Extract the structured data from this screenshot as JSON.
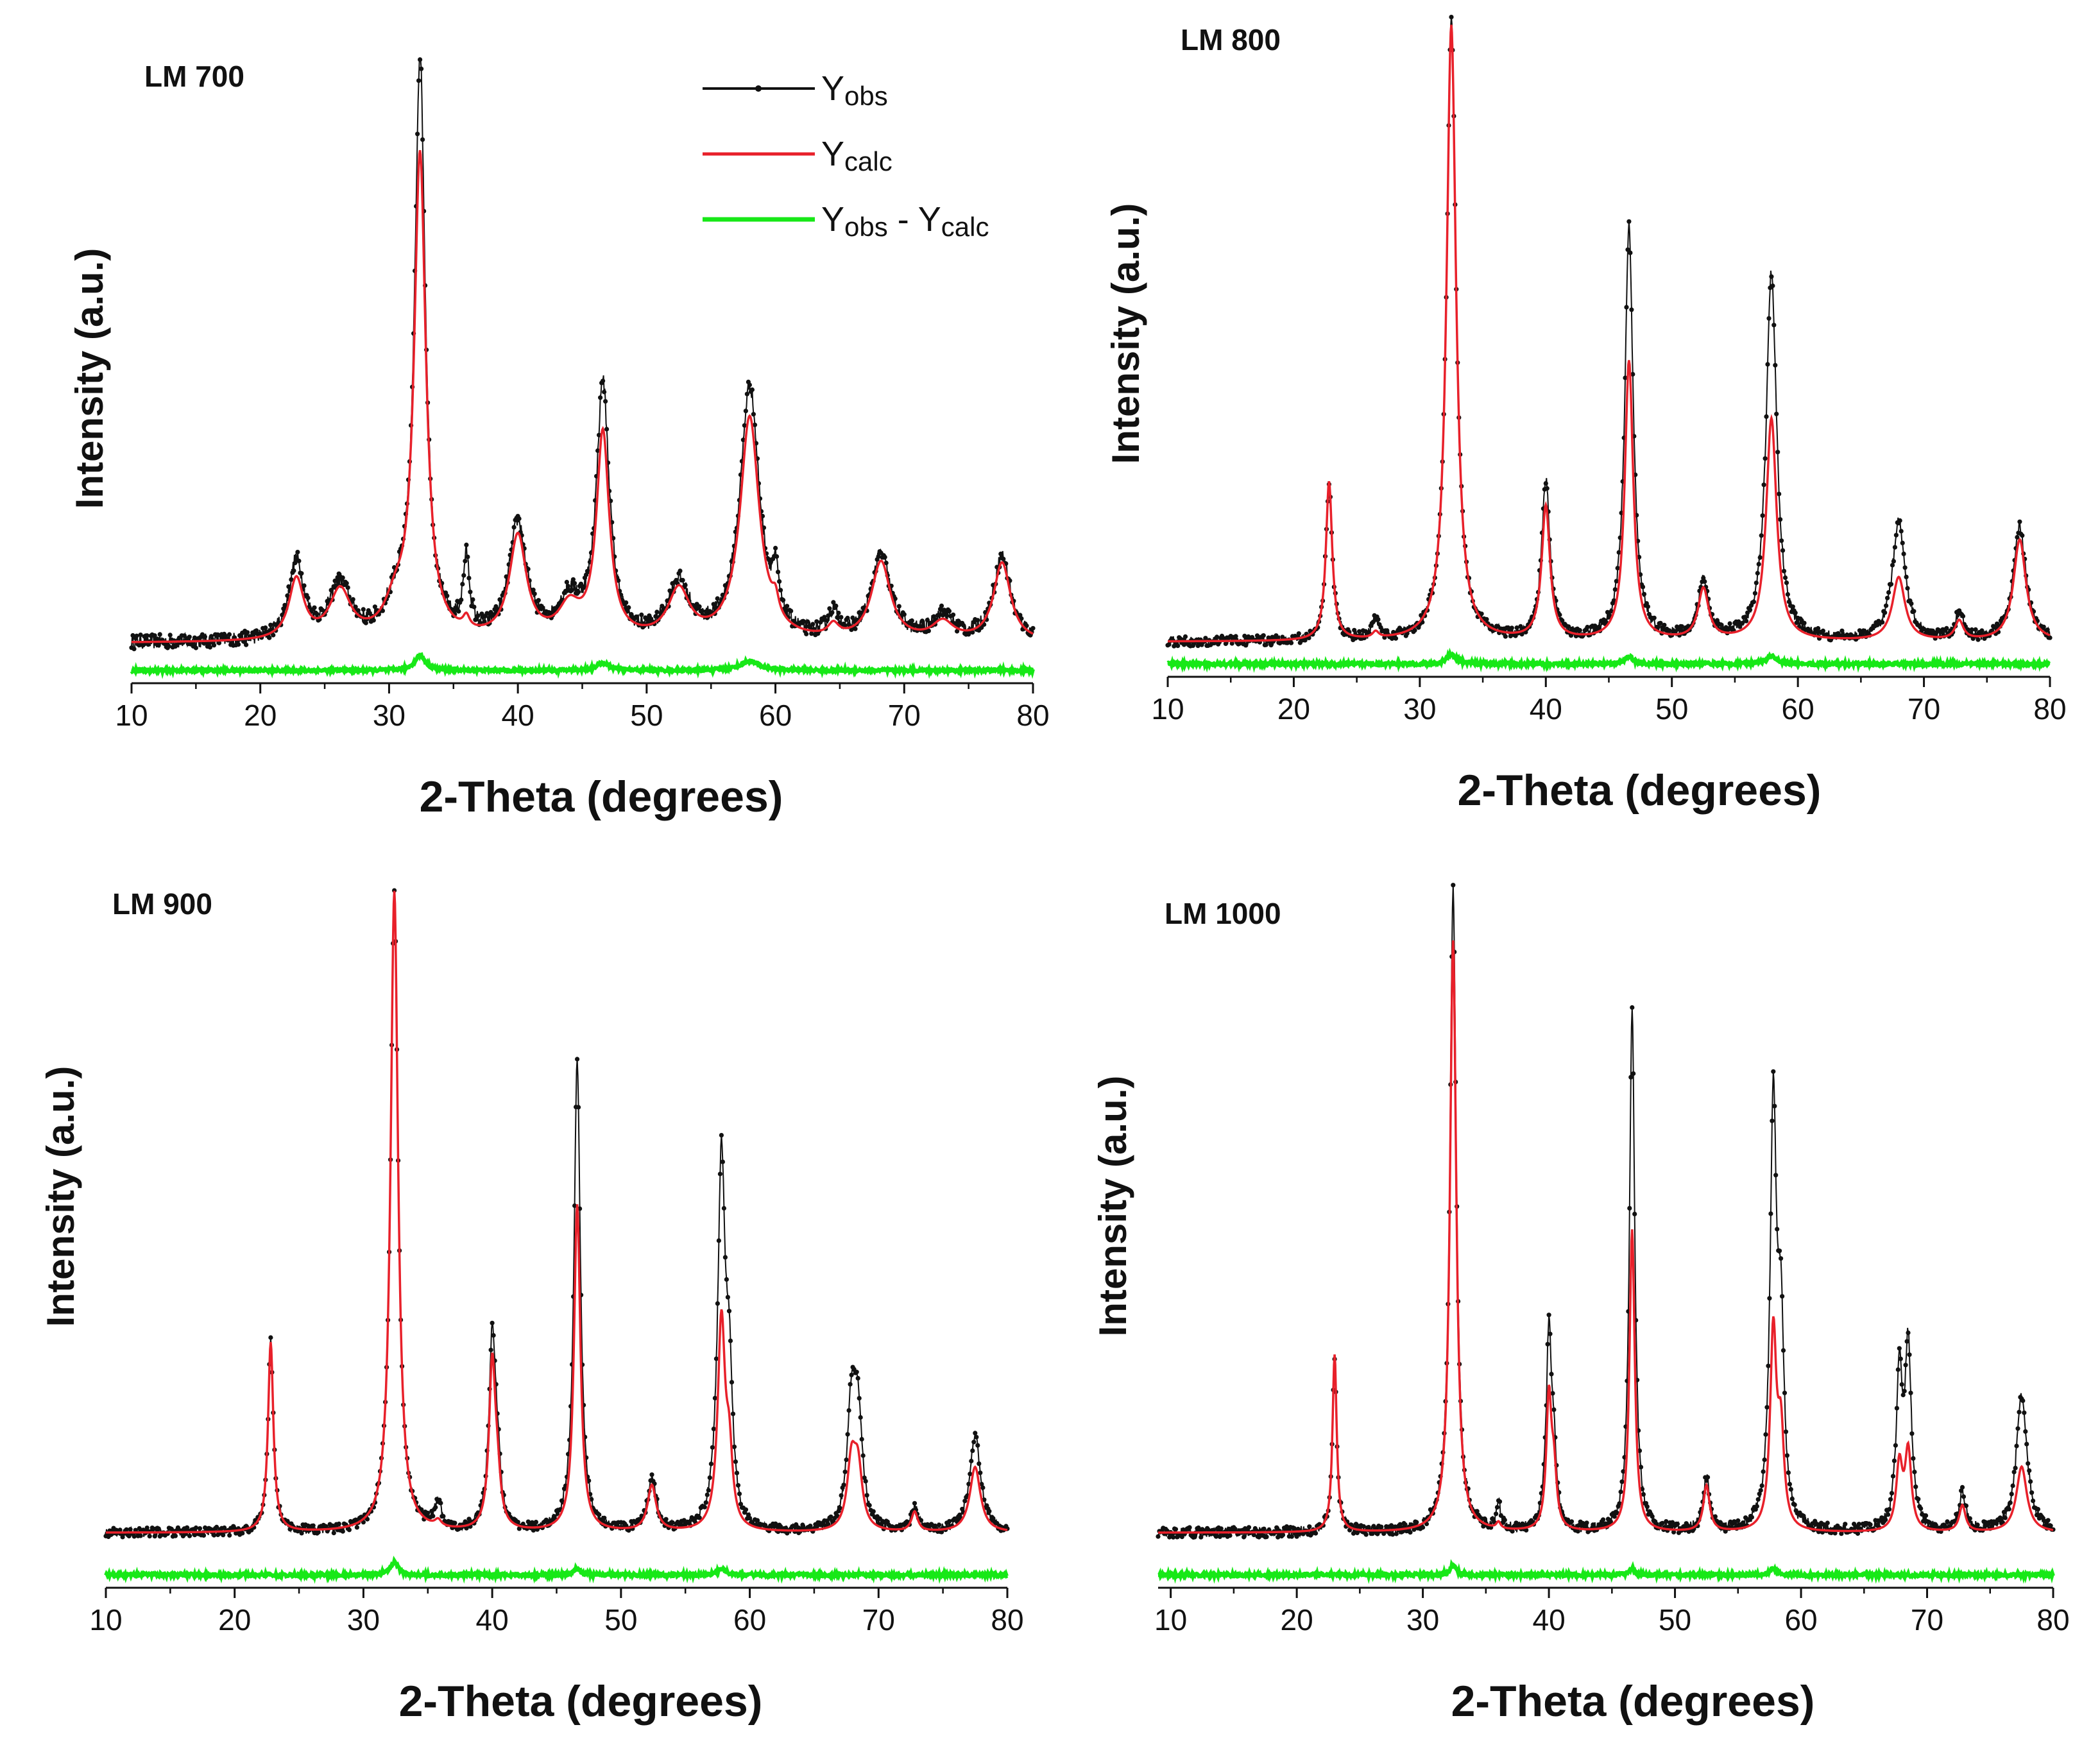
{
  "colors": {
    "obs": "#111111",
    "calc": "#e8202a",
    "diff": "#17e817"
  },
  "legend": {
    "obs": {
      "main": "Y",
      "sub": "obs"
    },
    "calc": {
      "main": "Y",
      "sub": "calc"
    },
    "diff": {
      "main1": "Y",
      "sub1": "obs",
      "mid": " - ",
      "main2": "Y",
      "sub2": "calc"
    }
  },
  "chart_data": [
    {
      "type": "line",
      "title": "LM 700",
      "xlabel": "2-Theta (degrees)",
      "ylabel": "Intensity (a.u.)",
      "xlim": [
        10,
        80
      ],
      "xticks": [
        10,
        20,
        30,
        40,
        50,
        60,
        70,
        80
      ],
      "ylim": [
        0,
        100
      ],
      "baseline": 4,
      "noise": 1.2,
      "series": [
        {
          "name": "Yobs",
          "peaks": [
            [
              22.8,
              13,
              0.7
            ],
            [
              26.2,
              9,
              1.0
            ],
            [
              30.5,
              5,
              1.0
            ],
            [
              32.4,
              96,
              0.5
            ],
            [
              36.0,
              12,
              0.3
            ],
            [
              40.0,
              19,
              0.8
            ],
            [
              44.0,
              6,
              1.0
            ],
            [
              46.6,
              42,
              0.6
            ],
            [
              52.5,
              9,
              1.0
            ],
            [
              58.0,
              42,
              0.9
            ],
            [
              60.0,
              7,
              0.3
            ],
            [
              64.5,
              4,
              0.5
            ],
            [
              68.2,
              14,
              0.9
            ],
            [
              73.0,
              4,
              1.0
            ],
            [
              77.6,
              14,
              0.8
            ]
          ]
        },
        {
          "name": "Ycalc",
          "peaks": [
            [
              22.8,
              10,
              0.7
            ],
            [
              26.2,
              8,
              1.0
            ],
            [
              30.5,
              5,
              1.0
            ],
            [
              32.4,
              80,
              0.55
            ],
            [
              36.0,
              2,
              0.3
            ],
            [
              40.0,
              17,
              0.8
            ],
            [
              44.0,
              5,
              1.0
            ],
            [
              46.6,
              34,
              0.6
            ],
            [
              52.5,
              8,
              1.0
            ],
            [
              58.0,
              37,
              0.9
            ],
            [
              60.0,
              3,
              0.3
            ],
            [
              64.5,
              2,
              0.5
            ],
            [
              68.2,
              13,
              0.9
            ],
            [
              73.0,
              3,
              1.0
            ],
            [
              77.6,
              13,
              0.8
            ]
          ]
        },
        {
          "name": "Yobs - Ycalc",
          "peaks": [
            [
              32.4,
              2.5,
              0.5
            ],
            [
              46.6,
              1.2,
              0.6
            ],
            [
              58.0,
              1.5,
              0.9
            ]
          ]
        }
      ]
    },
    {
      "type": "line",
      "title": "LM 800",
      "xlabel": "2-Theta (degrees)",
      "ylabel": "Intensity (a.u.)",
      "xlim": [
        10,
        80
      ],
      "xticks": [
        10,
        20,
        30,
        40,
        50,
        60,
        70,
        80
      ],
      "ylim": [
        0,
        100
      ],
      "baseline": 3,
      "noise": 0.8,
      "series": [
        {
          "name": "Yobs",
          "peaks": [
            [
              22.8,
              25,
              0.3
            ],
            [
              26.5,
              3,
              0.3
            ],
            [
              32.5,
              98,
              0.45
            ],
            [
              40.0,
              25,
              0.4
            ],
            [
              46.6,
              65,
              0.4
            ],
            [
              52.5,
              9,
              0.5
            ],
            [
              57.9,
              58,
              0.5
            ],
            [
              68.0,
              19,
              0.6
            ],
            [
              72.8,
              4,
              0.4
            ],
            [
              77.6,
              18,
              0.6
            ]
          ]
        },
        {
          "name": "Ycalc",
          "peaks": [
            [
              22.8,
              25,
              0.3
            ],
            [
              26.5,
              1,
              0.3
            ],
            [
              32.5,
              97,
              0.45
            ],
            [
              40.0,
              21,
              0.4
            ],
            [
              46.6,
              44,
              0.4
            ],
            [
              52.5,
              8,
              0.5
            ],
            [
              57.9,
              35,
              0.5
            ],
            [
              68.0,
              10,
              0.6
            ],
            [
              72.8,
              3,
              0.4
            ],
            [
              77.6,
              16,
              0.6
            ]
          ]
        },
        {
          "name": "Yobs - Ycalc",
          "peaks": [
            [
              32.5,
              1.5,
              0.45
            ],
            [
              46.6,
              1.2,
              0.4
            ],
            [
              57.9,
              1.2,
              0.5
            ]
          ]
        }
      ]
    },
    {
      "type": "line",
      "title": "LM 900",
      "xlabel": "2-Theta (degrees)",
      "ylabel": "Intensity (a.u.)",
      "xlim": [
        10,
        80
      ],
      "xticks": [
        10,
        20,
        30,
        40,
        50,
        60,
        70,
        80
      ],
      "ylim": [
        0,
        100
      ],
      "baseline": 3,
      "noise": 0.7,
      "series": [
        {
          "name": "Yobs",
          "peaks": [
            [
              22.8,
              29,
              0.25
            ],
            [
              32.4,
              98,
              0.35
            ],
            [
              35.8,
              4,
              0.3
            ],
            [
              40.0,
              29,
              0.3
            ],
            [
              40.4,
              8,
              0.3
            ],
            [
              46.6,
              72,
              0.3
            ],
            [
              52.4,
              8,
              0.4
            ],
            [
              57.8,
              56,
              0.35
            ],
            [
              58.4,
              20,
              0.3
            ],
            [
              67.9,
              18,
              0.4
            ],
            [
              68.4,
              16,
              0.4
            ],
            [
              72.8,
              4,
              0.3
            ],
            [
              77.5,
              15,
              0.5
            ]
          ]
        },
        {
          "name": "Ycalc",
          "peaks": [
            [
              22.8,
              29,
              0.25
            ],
            [
              32.4,
              98,
              0.35
            ],
            [
              35.8,
              1,
              0.3
            ],
            [
              40.0,
              25,
              0.3
            ],
            [
              40.4,
              6,
              0.3
            ],
            [
              46.6,
              50,
              0.3
            ],
            [
              52.4,
              7,
              0.4
            ],
            [
              57.8,
              32,
              0.35
            ],
            [
              58.4,
              10,
              0.3
            ],
            [
              67.9,
              10,
              0.4
            ],
            [
              68.4,
              9,
              0.4
            ],
            [
              72.8,
              3,
              0.3
            ],
            [
              77.5,
              10,
              0.5
            ]
          ]
        },
        {
          "name": "Yobs - Ycalc",
          "peaks": [
            [
              32.4,
              2,
              0.35
            ],
            [
              46.6,
              1,
              0.3
            ],
            [
              57.8,
              1,
              0.35
            ]
          ]
        }
      ]
    },
    {
      "type": "line",
      "title": "LM 1000",
      "xlabel": "2-Theta (degrees)",
      "ylabel": "Intensity (a.u.)",
      "xlim": [
        9,
        80
      ],
      "xticks": [
        10,
        20,
        30,
        40,
        50,
        60,
        70,
        80
      ],
      "ylim": [
        0,
        100
      ],
      "baseline": 3,
      "noise": 0.8,
      "series": [
        {
          "name": "Yobs",
          "peaks": [
            [
              23.0,
              27,
              0.2
            ],
            [
              32.4,
              98,
              0.3
            ],
            [
              36.0,
              4,
              0.2
            ],
            [
              40.0,
              30,
              0.25
            ],
            [
              40.4,
              10,
              0.25
            ],
            [
              46.6,
              80,
              0.25
            ],
            [
              52.5,
              8,
              0.3
            ],
            [
              57.8,
              64,
              0.3
            ],
            [
              58.4,
              28,
              0.3
            ],
            [
              67.8,
              23,
              0.3
            ],
            [
              68.5,
              27,
              0.3
            ],
            [
              72.8,
              6,
              0.3
            ],
            [
              77.5,
              21,
              0.5
            ]
          ]
        },
        {
          "name": "Ycalc",
          "peaks": [
            [
              23.0,
              27,
              0.2
            ],
            [
              32.4,
              90,
              0.3
            ],
            [
              36.0,
              1,
              0.2
            ],
            [
              40.0,
              20,
              0.25
            ],
            [
              40.4,
              8,
              0.25
            ],
            [
              46.6,
              46,
              0.25
            ],
            [
              52.5,
              7,
              0.3
            ],
            [
              57.8,
              30,
              0.3
            ],
            [
              58.4,
              14,
              0.3
            ],
            [
              67.8,
              10,
              0.3
            ],
            [
              68.5,
              12,
              0.3
            ],
            [
              72.8,
              4,
              0.3
            ],
            [
              77.5,
              10,
              0.5
            ]
          ]
        },
        {
          "name": "Yobs - Ycalc",
          "peaks": [
            [
              32.4,
              1.5,
              0.3
            ],
            [
              46.6,
              1,
              0.25
            ],
            [
              57.8,
              1,
              0.3
            ]
          ]
        }
      ]
    }
  ]
}
